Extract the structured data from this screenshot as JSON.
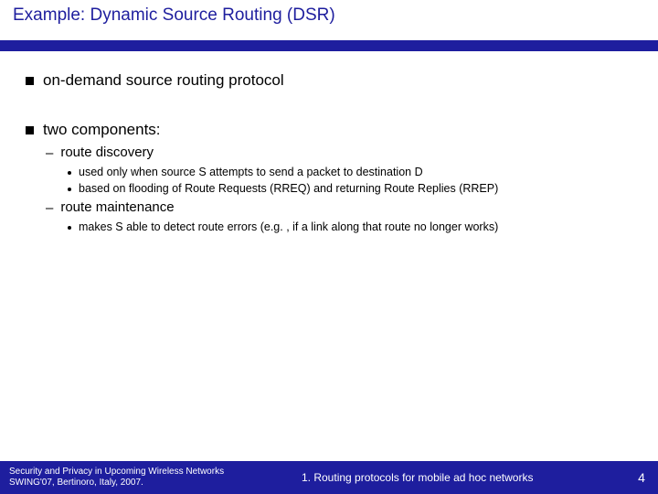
{
  "title": "Example: Dynamic Source Routing (DSR)",
  "colors": {
    "accent": "#1e1e9e",
    "text": "#000000",
    "background": "#ffffff",
    "footer_text": "#ffffff"
  },
  "bullets": {
    "b1": "on-demand source routing protocol",
    "b2": "two components:",
    "b2_1": "route discovery",
    "b2_1_1": "used only when source S attempts to send a packet to destination D",
    "b2_1_2": "based on flooding of Route Requests (RREQ) and returning Route Replies (RREP)",
    "b2_2": "route maintenance",
    "b2_2_1": "makes S able to detect route errors (e.g. , if a link along that route no longer works)"
  },
  "footer": {
    "left_line1": "Security and Privacy in Upcoming Wireless Networks",
    "left_line2": "SWING'07, Bertinoro, Italy, 2007.",
    "center": "1. Routing protocols for mobile ad hoc networks",
    "page": "4"
  }
}
